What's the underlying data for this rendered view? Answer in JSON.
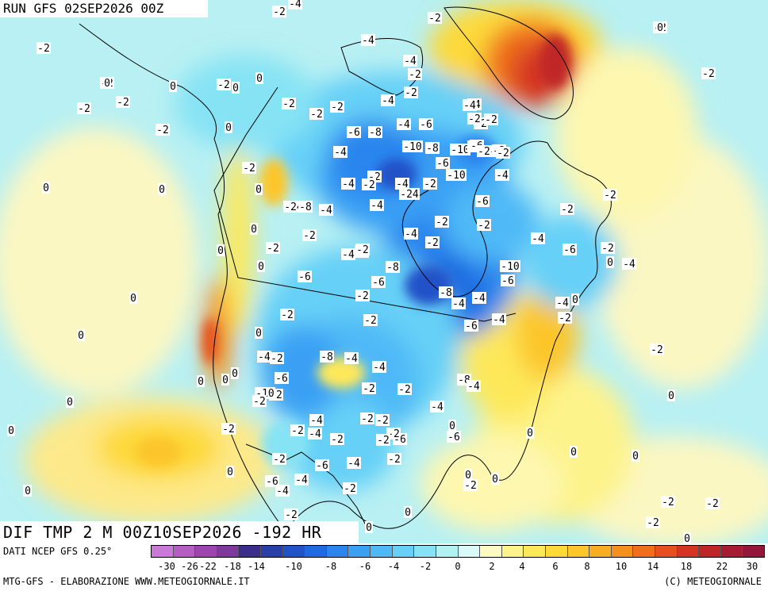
{
  "header": {
    "run_label": "RUN GFS 02SEP2026 00Z",
    "field_label": "DIF TMP 2 M 00Z10SEP2026 -192 HR"
  },
  "footer": {
    "data_source": "DATI NCEP GFS 0.25°",
    "credits": "MTG-GFS - ELABORAZIONE WWW.METEOGIORNALE.IT",
    "copyright": "(C) METEOGIORNALE"
  },
  "colorbar": {
    "colors": [
      "#c87ad6",
      "#b45ec4",
      "#9c45b0",
      "#7d3a9c",
      "#3a2d8c",
      "#2a3fa8",
      "#2251c8",
      "#1f6ae0",
      "#2a86ee",
      "#3aa0f4",
      "#4fb9f7",
      "#66d0f7",
      "#86e3f4",
      "#b3f2f2",
      "#dafaf7",
      "#fbf9c4",
      "#fdf38b",
      "#fde85a",
      "#fdd93a",
      "#fcc62c",
      "#f9ad24",
      "#f5901e",
      "#ef6f1c",
      "#e5501e",
      "#d43522",
      "#bf2627",
      "#a81c33",
      "#94163a"
    ],
    "ticks": [
      "-30",
      "-26",
      "-22",
      "-18",
      "-14",
      "-10",
      "-8",
      "-6",
      "-4",
      "-2",
      "0",
      "2",
      "4",
      "6",
      "8",
      "10",
      "14",
      "18",
      "22",
      "30"
    ]
  },
  "map": {
    "labels": [
      "0",
      "-2",
      "-2",
      "-2",
      "-2",
      "-2",
      "-2",
      "-2",
      "0",
      "0",
      "0",
      "-2",
      "0",
      "0",
      "0",
      "0",
      "0",
      "0",
      "0",
      "0",
      "0",
      "0",
      "0",
      "0",
      "0",
      "0",
      "0",
      "-2",
      "-2",
      "-2",
      "-2",
      "-2",
      "-2",
      "-24",
      "-4",
      "-4",
      "-2",
      "-2",
      "-2",
      "-2",
      "-4",
      "-2",
      "-6",
      "-8",
      "-4",
      "-6",
      "-4",
      "-2",
      "-4",
      "-10",
      "-8",
      "-10",
      "-6",
      "-10",
      "-4",
      "-4",
      "-2",
      "-6",
      "-6",
      "-6",
      "-6",
      "-4",
      "-8",
      "-4",
      "-2",
      "-4",
      "-2",
      "-2",
      "-24",
      "-2",
      "-2",
      "-4",
      "-2",
      "-4",
      "-6",
      "-2",
      "-4",
      "-2",
      "-4",
      "-2",
      "-6",
      "-8",
      "-6",
      "-10",
      "-6",
      "-8",
      "-4",
      "-4",
      "-2",
      "-2",
      "-2",
      "-6",
      "-4",
      "-4",
      "-2",
      "-4",
      "-2",
      "-8",
      "-4",
      "-4",
      "-6",
      "-2",
      "-2",
      "-2",
      "-8",
      "-10",
      "-2",
      "-4",
      "-6",
      "-2",
      "-4",
      "-6",
      "-2",
      "-2",
      "0",
      "-2",
      "-4",
      "-2",
      "-2",
      "-4",
      "-4",
      "-2",
      "-6",
      "-2",
      "0",
      "0",
      "0",
      "0",
      "0",
      "-2",
      "-2",
      "-2",
      "-2",
      "-2",
      "-6",
      "-4",
      "-4",
      "-2",
      "-2",
      "0",
      "0",
      "0",
      "0",
      "0",
      "0",
      "0",
      "0",
      "0",
      "-2",
      "-4",
      "-2",
      "-2",
      "-2",
      "-2",
      "-2",
      "-2",
      "-4",
      "-2",
      "0",
      "-2",
      "-2",
      "0"
    ]
  }
}
